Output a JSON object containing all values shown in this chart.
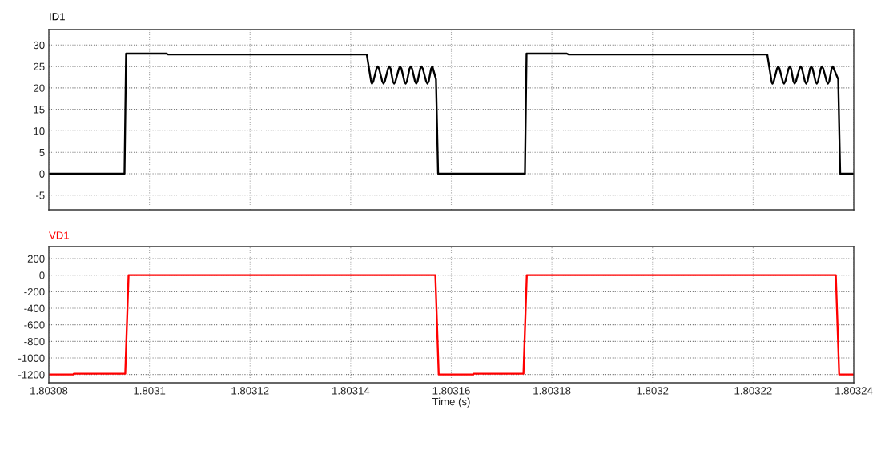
{
  "chart_data": [
    {
      "type": "line",
      "xlim": [
        1.80308,
        1.80324
      ],
      "xticks": [
        1.80308,
        1.8031,
        1.80312,
        1.80314,
        1.80316,
        1.80318,
        1.8032,
        1.80322,
        1.80324
      ],
      "ylim": [
        -8.4,
        33.6
      ],
      "yticks": [
        -5,
        0,
        5,
        10,
        15,
        20,
        25,
        30
      ],
      "grid": true,
      "tick_labels": "y",
      "line_style": "solid",
      "series": [
        {
          "name": "ID1",
          "color": "#000000",
          "x": [
            1.80308,
            1.80309504,
            1.80309536,
            1.80310336,
            1.80310368,
            1.8031432,
            1.80314399,
            1.80314412,
            1.80314424,
            1.80314449,
            1.80314513,
            1.80314538,
            1.80314563,
            1.80314628,
            1.80314653,
            1.80314678,
            1.80314743,
            1.80314768,
            1.80314793,
            1.80314839,
            1.80314864,
            1.80314889,
            1.80314959,
            1.80314984,
            1.80315009,
            1.80315068,
            1.80315093,
            1.80315118,
            1.8031517,
            1.80315195,
            1.8031522,
            1.80315279,
            1.80315304,
            1.80315329,
            1.80315383,
            1.80315408,
            1.80315433,
            1.80315501,
            1.80315526,
            1.80315551,
            1.80315599,
            1.80315624,
            1.80315696,
            1.80315738,
            1.80317464,
            1.80317496,
            1.80318296,
            1.80318328,
            1.8032228,
            1.80322359,
            1.80322372,
            1.80322384,
            1.80322409,
            1.80322473,
            1.80322498,
            1.80322523,
            1.80322588,
            1.80322613,
            1.80322638,
            1.80322703,
            1.80322728,
            1.80322753,
            1.80322799,
            1.80322824,
            1.80322849,
            1.80322919,
            1.80322944,
            1.80322969,
            1.80323028,
            1.80323053,
            1.80323078,
            1.8032313,
            1.80323155,
            1.8032318,
            1.80323239,
            1.80323264,
            1.80323289,
            1.80323343,
            1.80323368,
            1.80323393,
            1.80323461,
            1.80323486,
            1.80323511,
            1.80323559,
            1.80323584,
            1.8032369,
            1.8032373,
            1.80324
          ],
          "values": [
            0,
            0,
            28,
            28,
            27.8,
            27.8,
            22,
            21.2,
            21,
            21.5,
            24.5,
            25,
            24.5,
            21.5,
            21,
            21.5,
            24.5,
            25,
            24.5,
            21.5,
            21,
            21.5,
            24.5,
            25,
            24.5,
            21.5,
            21,
            21.5,
            24.5,
            25,
            24.5,
            21.5,
            21,
            21.5,
            24.5,
            25,
            24.5,
            21.5,
            21,
            21.5,
            24.5,
            25,
            22,
            0,
            0,
            28,
            28,
            27.8,
            27.8,
            22,
            21.2,
            21,
            21.5,
            24.5,
            25,
            24.5,
            21.5,
            21,
            21.5,
            24.5,
            25,
            24.5,
            21.5,
            21,
            21.5,
            24.5,
            25,
            24.5,
            21.5,
            21,
            21.5,
            24.5,
            25,
            24.5,
            21.5,
            21,
            21.5,
            24.5,
            25,
            24.5,
            21.5,
            21,
            21.5,
            24.5,
            25,
            22,
            0,
            0
          ]
        }
      ]
    },
    {
      "type": "line",
      "xlabel": "Time (s)",
      "xlim": [
        1.80308,
        1.80324
      ],
      "xticks": [
        1.80308,
        1.8031,
        1.80312,
        1.80314,
        1.80316,
        1.80318,
        1.8032,
        1.80322,
        1.80324
      ],
      "ylim": [
        -1300,
        345
      ],
      "yticks": [
        -1200,
        -1000,
        -800,
        -600,
        -400,
        -200,
        0,
        200
      ],
      "grid": true,
      "line_style": "solid",
      "series": [
        {
          "name": "VD1",
          "color": "#ff0000",
          "x": [
            1.80308,
            1.80308488,
            1.80308496,
            1.80309519,
            1.80309585,
            1.80315683,
            1.8031575,
            1.80316437,
            1.80316445,
            1.80317435,
            1.80317501,
            1.80323643,
            1.8032371,
            1.80324
          ],
          "values": [
            -1200,
            -1200,
            -1190,
            -1190,
            0,
            0,
            -1200,
            -1200,
            -1190,
            -1190,
            0,
            0,
            -1200,
            -1200
          ]
        }
      ]
    }
  ]
}
